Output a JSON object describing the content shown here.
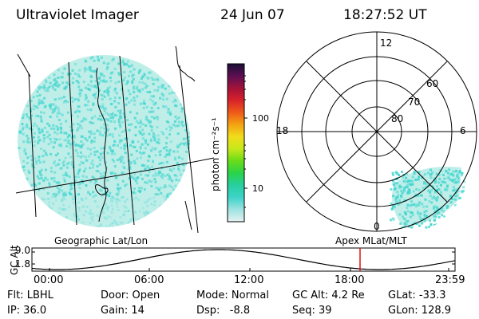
{
  "header": {
    "instrument": "Ultraviolet Imager",
    "date": "24 Jun 07",
    "time": "18:27:52 UT"
  },
  "colorbar": {
    "label": "photon cm⁻²s⁻¹",
    "ticks": [
      "100",
      "10"
    ],
    "colors": [
      "#1a0f35",
      "#5b0f52",
      "#a3123a",
      "#d8222a",
      "#ef5a1a",
      "#f3a312",
      "#f1dc1c",
      "#c6e81a",
      "#69dc18",
      "#2bd34a",
      "#27cfa0",
      "#3dd3c9",
      "#9fe2e0",
      "#e3f3f1"
    ]
  },
  "geo_panel": {
    "label": "Geographic Lat/Lon",
    "fill_color": "#47d6cf",
    "bg_color": "#bfeee9"
  },
  "polar_panel": {
    "label": "Apex MLat/MLT",
    "mlt_labels": [
      "12",
      "18",
      "6",
      "0"
    ],
    "lat_labels": [
      "60",
      "70",
      "80"
    ]
  },
  "altitude_strip": {
    "ylabel": "GC Alt",
    "y_ticks": [
      "9.0",
      "1.8"
    ],
    "x_ticks": [
      "00:00",
      "06:00",
      "12:00",
      "18:00",
      "23:59"
    ],
    "marker_color": "#e01010"
  },
  "params": {
    "flt": "Flt: LBHL",
    "ip": "IP: 36.0",
    "door": "Door: Open",
    "gain": "Gain: 14",
    "mode": "Mode: Normal",
    "dsp": "Dsp:   -8.8",
    "gc_alt": "GC Alt: 4.2 Re",
    "seq": "Seq: 39",
    "glat": "GLat: -33.3",
    "glon": "GLon: 128.9"
  }
}
